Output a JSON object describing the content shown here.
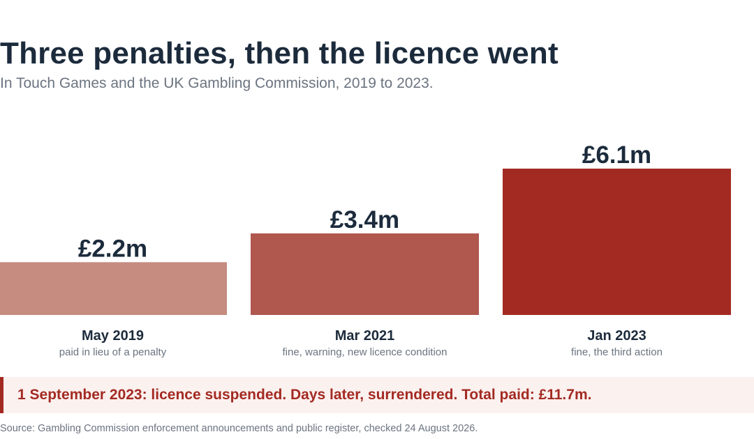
{
  "title": "Three penalties, then the licence went",
  "subtitle": "In Touch Games and the UK Gambling Commission, 2019 to 2023.",
  "chart_data": {
    "type": "bar",
    "categories": [
      "May 2019",
      "Mar 2021",
      "Jan 2023"
    ],
    "category_notes": [
      "paid in lieu of a penalty",
      "fine, warning, new licence condition",
      "fine, the third action"
    ],
    "values": [
      2.2,
      3.4,
      6.1
    ],
    "value_labels": [
      "£2.2m",
      "£3.4m",
      "£6.1m"
    ],
    "bar_colors": [
      "#c68c80",
      "#b0584e",
      "#a32a22"
    ],
    "unit": "£m",
    "ylim": [
      0,
      6.1
    ],
    "grid": false,
    "legend": "none"
  },
  "callout": {
    "text": "1 September 2023: licence suspended. Days later, surrendered. Total paid: £11.7m.",
    "accent_color": "#a32a22"
  },
  "source": "Source: Gambling Commission enforcement announcements and public register, checked 24 August 2026."
}
